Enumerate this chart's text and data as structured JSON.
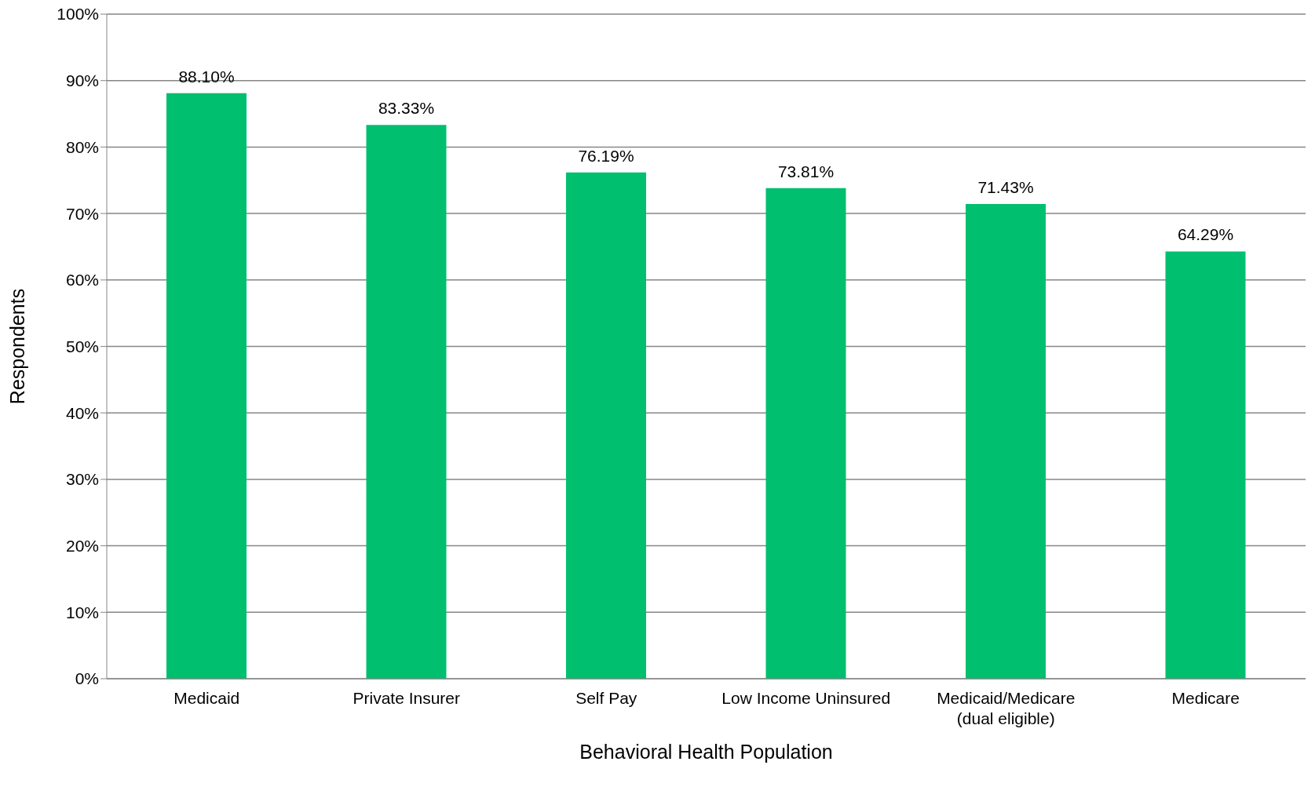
{
  "chart_data": {
    "type": "bar",
    "xlabel": "Behavioral Health Population",
    "ylabel": "Respondents",
    "categories": [
      "Medicaid",
      "Private Insurer",
      "Self Pay",
      "Low Income Uninsured",
      "Medicaid/Medicare (dual eligible)",
      "Medicare"
    ],
    "values": [
      88.1,
      83.33,
      76.19,
      73.81,
      71.43,
      64.29
    ],
    "value_labels": [
      "88.10%",
      "83.33%",
      "76.19%",
      "73.81%",
      "71.43%",
      "64.29%"
    ],
    "color": "#00bf6f",
    "ylim": [
      0,
      100
    ],
    "yticks": [
      {
        "value": 0,
        "label": "0%"
      },
      {
        "value": 10,
        "label": "10%"
      },
      {
        "value": 20,
        "label": "20%"
      },
      {
        "value": 30,
        "label": "30%"
      },
      {
        "value": 40,
        "label": "40%"
      },
      {
        "value": 50,
        "label": "50%"
      },
      {
        "value": 60,
        "label": "60%"
      },
      {
        "value": 70,
        "label": "70%"
      },
      {
        "value": 80,
        "label": "80%"
      },
      {
        "value": 90,
        "label": "90%"
      },
      {
        "value": 100,
        "label": "100%"
      }
    ],
    "grid": "y",
    "legend": false
  }
}
